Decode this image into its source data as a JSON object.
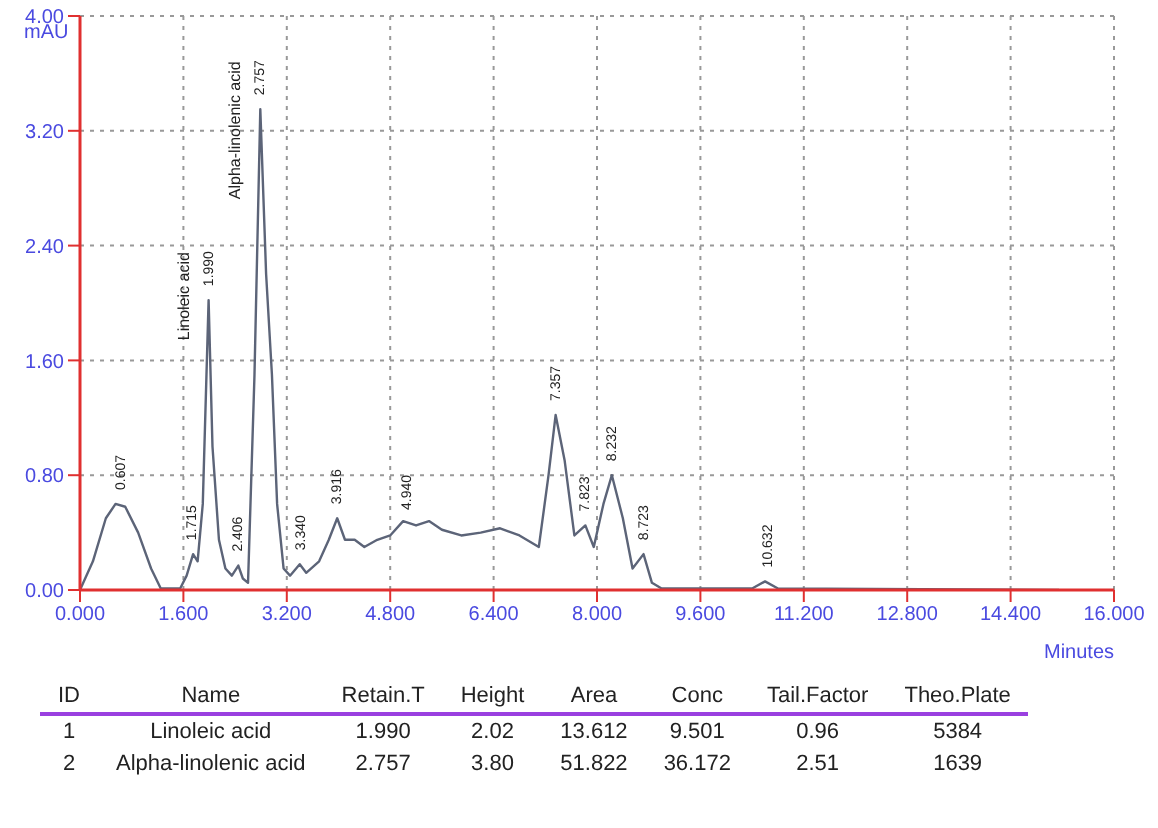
{
  "chart_data": {
    "type": "line",
    "xlabel": "Minutes",
    "ylabel": "mAU",
    "grid": true,
    "marker": "none",
    "line_style": "solid",
    "xlim": [
      0,
      16
    ],
    "ylim": [
      0,
      4
    ],
    "xticks": [
      {
        "value": 0,
        "label": "0.000"
      },
      {
        "value": 1.6,
        "label": "1.600"
      },
      {
        "value": 3.2,
        "label": "3.200"
      },
      {
        "value": 4.8,
        "label": "4.800"
      },
      {
        "value": 6.4,
        "label": "6.400"
      },
      {
        "value": 8,
        "label": "8.000"
      },
      {
        "value": 9.6,
        "label": "9.600"
      },
      {
        "value": 11.2,
        "label": "11.200"
      },
      {
        "value": 12.8,
        "label": "12.800"
      },
      {
        "value": 14.4,
        "label": "14.400"
      },
      {
        "value": 16,
        "label": "16.000"
      }
    ],
    "yticks": [
      {
        "value": 0,
        "label": "0.00"
      },
      {
        "value": 0.8,
        "label": "0.80"
      },
      {
        "value": 1.6,
        "label": "1.60"
      },
      {
        "value": 2.4,
        "label": "2.40"
      },
      {
        "value": 3.2,
        "label": "3.20"
      },
      {
        "value": 4,
        "label": "4.00"
      }
    ],
    "series": [
      {
        "color": "#5c6478",
        "x": [
          0,
          0.2,
          0.4,
          0.55,
          0.7,
          0.9,
          1.1,
          1.25,
          1.55,
          1.65,
          1.75,
          1.82,
          1.9,
          1.99,
          2.05,
          2.15,
          2.25,
          2.35,
          2.45,
          2.52,
          2.6,
          2.7,
          2.79,
          2.88,
          2.97,
          3.05,
          3.15,
          3.25,
          3.4,
          3.5,
          3.7,
          3.85,
          3.98,
          4.1,
          4.25,
          4.4,
          4.6,
          4.8,
          5.0,
          5.2,
          5.4,
          5.6,
          5.9,
          6.2,
          6.5,
          6.8,
          7.1,
          7.25,
          7.36,
          7.5,
          7.65,
          7.82,
          7.95,
          8.1,
          8.23,
          8.4,
          8.55,
          8.72,
          8.85,
          9.0,
          10.4,
          10.6,
          10.8,
          15.15
        ],
        "values": [
          0,
          0.2,
          0.5,
          0.6,
          0.58,
          0.4,
          0.15,
          0.01,
          0.01,
          0.1,
          0.25,
          0.2,
          0.6,
          2.02,
          1.0,
          0.35,
          0.15,
          0.1,
          0.17,
          0.08,
          0.05,
          1.5,
          3.35,
          2.2,
          1.5,
          0.6,
          0.15,
          0.1,
          0.18,
          0.12,
          0.2,
          0.35,
          0.5,
          0.35,
          0.35,
          0.3,
          0.35,
          0.38,
          0.48,
          0.45,
          0.48,
          0.42,
          0.38,
          0.4,
          0.43,
          0.38,
          0.3,
          0.8,
          1.22,
          0.9,
          0.38,
          0.45,
          0.3,
          0.6,
          0.8,
          0.5,
          0.15,
          0.25,
          0.05,
          0.01,
          0.01,
          0.06,
          0.01,
          0
        ]
      }
    ],
    "annotations": [
      {
        "text": "0.607",
        "x": 0.64,
        "y": 0.6
      },
      {
        "text": "1.715",
        "x": 1.74,
        "y": 0.25
      },
      {
        "text": "1.990",
        "x": 1.99,
        "y": 2.02
      },
      {
        "text": "Linoleic acid",
        "x": 1.99,
        "y": 2.02
      },
      {
        "text": "2.406",
        "x": 2.45,
        "y": 0.17
      },
      {
        "text": "2.757",
        "x": 2.79,
        "y": 3.35
      },
      {
        "text": "Alpha-linolenic acid",
        "x": 2.79,
        "y": 3.35
      },
      {
        "text": "3.340",
        "x": 3.42,
        "y": 0.18
      },
      {
        "text": "3.916",
        "x": 3.98,
        "y": 0.5
      },
      {
        "text": "4.940",
        "x": 5.06,
        "y": 0.46
      },
      {
        "text": "7.357",
        "x": 7.36,
        "y": 1.22
      },
      {
        "text": "7.823",
        "x": 7.82,
        "y": 0.45
      },
      {
        "text": "8.232",
        "x": 8.23,
        "y": 0.8
      },
      {
        "text": "8.723",
        "x": 8.72,
        "y": 0.25
      },
      {
        "text": "10.632",
        "x": 10.65,
        "y": 0.06
      },
      "ID",
      "Name",
      "Retain.T",
      "Height",
      "Area",
      "Conc",
      "Tail.Factor",
      "Theo.Plate",
      "1",
      "Linoleic acid",
      "1.990",
      "2.02",
      "13.612",
      "9.501",
      "0.96",
      "5384",
      "2",
      "Alpha-linolenic acid",
      "2.757",
      "3.80",
      "51.822",
      "36.172",
      "2.51",
      "1639"
    ]
  }
}
